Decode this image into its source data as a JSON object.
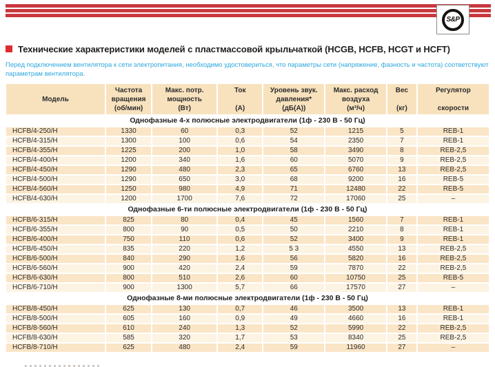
{
  "page": {
    "logo_text": "S&P",
    "title": "Технические характеристики моделей с пластмассовой крыльчаткой (HCGB, HCFB, HCGT и HCFT)",
    "intro_lines": [
      "Перед подключением вентилятора к сети электропитания, необходимо удостовериться, что параметры сети (напряжение, фазность и частота) соответствуют",
      "параметрам вентилятора."
    ]
  },
  "colors": {
    "stripe_red": "#C8383E",
    "bullet_red": "#DF2B2F",
    "intro_blue": "#2BA7DE",
    "header_bg": "#F8E2BE",
    "row_dark": "#FAE5C6",
    "row_light": "#FDF3E3"
  },
  "table": {
    "columns": [
      {
        "lines": [
          "Модель"
        ],
        "unit": "",
        "valign": "center"
      },
      {
        "lines": [
          "Частота",
          "вращения"
        ],
        "unit": "(об/мин)"
      },
      {
        "lines": [
          "Макс. потр.",
          "мощность"
        ],
        "unit": "(Вт)"
      },
      {
        "lines": [
          "Ток"
        ],
        "unit": "(А)"
      },
      {
        "lines": [
          "Уровень звук.",
          "давления*"
        ],
        "unit": "(дБ(А))"
      },
      {
        "lines": [
          "Макс. расход",
          "воздуха"
        ],
        "unit": "(м³/ч)"
      },
      {
        "lines": [
          "Вес"
        ],
        "unit": "(кг)"
      },
      {
        "lines": [
          "Регулятор",
          "скорости"
        ],
        "unit": ""
      }
    ],
    "sections": [
      {
        "header": "Однофазные 4-х полюсные электродвигатели (1ф - 230 В - 50 Гц)",
        "rows": [
          [
            "HCFB/4-250/H",
            "1330",
            "60",
            "0,3",
            "52",
            "1215",
            "5",
            "REB-1"
          ],
          [
            "HCFB/4-315/H",
            "1300",
            "100",
            "0,6",
            "54",
            "2350",
            "7",
            "REB-1"
          ],
          [
            "HCFB/4-355/H",
            "1225",
            "200",
            "1,0",
            "58",
            "3490",
            "8",
            "REB-2,5"
          ],
          [
            "HCFB/4-400/H",
            "1200",
            "340",
            "1,6",
            "60",
            "5070",
            "9",
            "REB-2,5"
          ],
          [
            "HCFB/4-450/H",
            "1290",
            "480",
            "2,3",
            "65",
            "6760",
            "13",
            "REB-2,5"
          ],
          [
            "HCFB/4-500/H",
            "1290",
            "650",
            "3,0",
            "68",
            "9200",
            "16",
            "REB-5"
          ],
          [
            "HCFB/4-560/H",
            "1250",
            "980",
            "4,9",
            "71",
            "12480",
            "22",
            "REB-5"
          ],
          [
            "HCFB/4-630/H",
            "1200",
            "1700",
            "7,6",
            "72",
            "17060",
            "25",
            "–"
          ]
        ]
      },
      {
        "header": "Однофазные 6-ти полюсные электродвигатели (1ф - 230 В - 50 Гц)",
        "rows": [
          [
            "HCFB/6-315/H",
            "825",
            "80",
            "0,4",
            "45",
            "1560",
            "7",
            "REB-1"
          ],
          [
            "HCFB/6-355/H",
            "800",
            "90",
            "0,5",
            "50",
            "2210",
            "8",
            "REB-1"
          ],
          [
            "HCFB/6-400/H",
            "750",
            "110",
            "0,6",
            "52",
            "3400",
            "9",
            "REB-1"
          ],
          [
            "HCFB/6-450/H",
            "835",
            "220",
            "1,2",
            "5 3",
            "4550",
            "13",
            "REB-2,5"
          ],
          [
            "HCFB/6-500/H",
            "840",
            "290",
            "1,6",
            "56",
            "5820",
            "16",
            "REB-2,5"
          ],
          [
            "HCFB/6-560/H",
            "900",
            "420",
            "2,4",
            "59",
            "7870",
            "22",
            "REB-2,5"
          ],
          [
            "HCFB/6-630/H",
            "800",
            "510",
            "2,6",
            "60",
            "10750",
            "25",
            "REB-5"
          ],
          [
            "HCFB/6-710/H",
            "900",
            "1300",
            "5,7",
            "66",
            "17570",
            "27",
            "–"
          ]
        ]
      },
      {
        "header": "Однофазные 8-ми полюсные электродвигатели (1ф - 230 В - 50 Гц)",
        "rows": [
          [
            "HCFB/8-450/H",
            "625",
            "130",
            "0,7",
            "46",
            "3500",
            "13",
            "REB-1"
          ],
          [
            "HCFB/8-500/H",
            "605",
            "160",
            "0,9",
            "49",
            "4660",
            "16",
            "REB-1"
          ],
          [
            "HCFB/8-560/H",
            "610",
            "240",
            "1,3",
            "52",
            "5990",
            "22",
            "REB-2,5"
          ],
          [
            "HCFB/8-630/H",
            "585",
            "320",
            "1,7",
            "53",
            "8340",
            "25",
            "REB-2,5"
          ],
          [
            "HCFB/8-710/H",
            "625",
            "480",
            "2,4",
            "59",
            "11960",
            "27",
            "–"
          ]
        ]
      }
    ]
  }
}
